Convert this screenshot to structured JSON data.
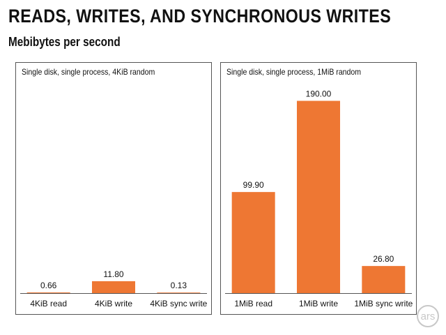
{
  "header": {
    "title": "READS, WRITES, AND SYNCHRONOUS WRITES",
    "subtitle": "Mebibytes per second"
  },
  "logo": {
    "text": "ars"
  },
  "colors": {
    "bar": "#ee7733",
    "axis": "#555555",
    "border": "#555555"
  },
  "chart_data": [
    {
      "type": "bar",
      "title": "Single disk, single process, 4KiB random",
      "categories": [
        "4KiB read",
        "4KiB write",
        "4KiB sync write"
      ],
      "values": [
        0.66,
        11.8,
        0.13
      ],
      "value_labels": [
        "0.66",
        "11.80",
        "0.13"
      ],
      "ylim": [
        0,
        200
      ],
      "grid": false
    },
    {
      "type": "bar",
      "title": "Single disk, single process, 1MiB random",
      "categories": [
        "1MiB read",
        "1MiB write",
        "1MiB sync write"
      ],
      "values": [
        99.9,
        190.0,
        26.8
      ],
      "value_labels": [
        "99.90",
        "190.00",
        "26.80"
      ],
      "ylim": [
        0,
        200
      ],
      "grid": false
    }
  ]
}
